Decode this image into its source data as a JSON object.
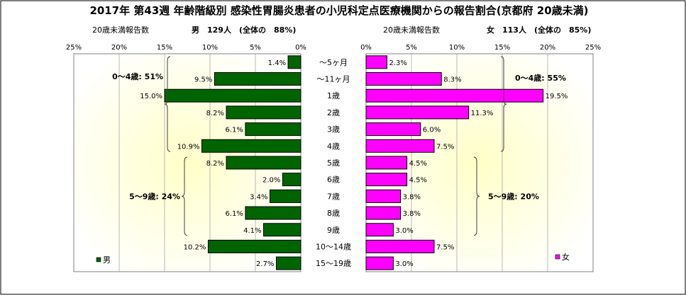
{
  "title": "2017年 第43週 年齢階級別 感染性胃腸炎患者の小児科定点医療機関からの報告割合(京都府 20歳未満)",
  "chart_data": {
    "type": "bar",
    "categories": [
      "～5ヶ月",
      "～11ヶ月",
      "1歳",
      "2歳",
      "3歳",
      "4歳",
      "5歳",
      "6歳",
      "7歳",
      "8歳",
      "9歳",
      "10～14歳",
      "15～19歳"
    ],
    "xlim": [
      0,
      25
    ],
    "x_ticks": [
      "0%",
      "5%",
      "10%",
      "15%",
      "20%",
      "25%"
    ],
    "left_ticks": [
      "25%",
      "20%",
      "15%",
      "10%",
      "5%",
      "0%"
    ],
    "series": [
      {
        "name": "男",
        "header_left": "20歳未満報告数",
        "header_right": "男　129人　(全体の　88%)",
        "color": "#006400",
        "values": [
          1.4,
          9.5,
          15.0,
          8.2,
          6.1,
          10.9,
          8.2,
          2.0,
          3.4,
          6.1,
          4.1,
          10.2,
          2.7
        ],
        "value_labels": [
          "1.4%",
          "9.5%",
          "15.0%",
          "8.2%",
          "6.1%",
          "10.9%",
          "8.2%",
          "2.0%",
          "3.4%",
          "6.1%",
          "4.1%",
          "10.2%",
          "2.7%"
        ],
        "brackets": [
          {
            "label": "0～4歳: 51%",
            "from": 0,
            "to": 5
          },
          {
            "label": "5～9歳: 24%",
            "from": 6,
            "to": 10
          }
        ]
      },
      {
        "name": "女",
        "header_left": "20歳未満報告数",
        "header_right": "女　113人　(全体の　85%)",
        "color": "#ff00ff",
        "values": [
          2.3,
          8.3,
          19.5,
          11.3,
          6.0,
          7.5,
          4.5,
          4.5,
          3.8,
          3.8,
          3.0,
          7.5,
          3.0
        ],
        "value_labels": [
          "2.3%",
          "8.3%",
          "19.5%",
          "11.3%",
          "6.0%",
          "7.5%",
          "4.5%",
          "4.5%",
          "3.8%",
          "3.8%",
          "3.0%",
          "7.5%",
          "3.0%"
        ],
        "brackets": [
          {
            "label": "0～4歳: 55%",
            "from": 0,
            "to": 5
          },
          {
            "label": "5～9歳: 20%",
            "from": 6,
            "to": 10
          }
        ]
      }
    ]
  }
}
